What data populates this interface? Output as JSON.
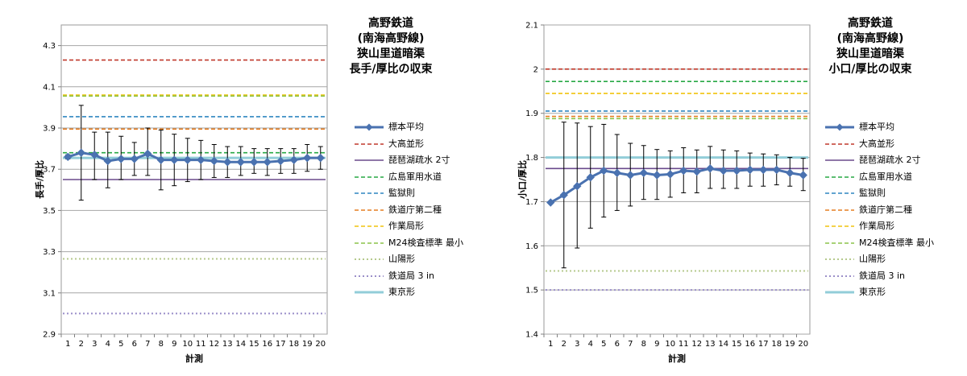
{
  "chart_data": [
    {
      "type": "line",
      "title": [
        "高野鉄道",
        "(南海高野線)",
        "狭山里道暗渠",
        "長手/厚比の収束"
      ],
      "xlabel": "計測",
      "ylabel": "長手/厚比",
      "x": [
        1,
        2,
        3,
        4,
        5,
        6,
        7,
        8,
        9,
        10,
        11,
        12,
        13,
        14,
        15,
        16,
        17,
        18,
        19,
        20
      ],
      "ylim": [
        2.9,
        4.4
      ],
      "yticks": [
        2.9,
        3.1,
        3.3,
        3.5,
        3.7,
        3.9,
        4.1,
        4.3
      ],
      "ytick_labels": [
        "2.9",
        "3.1",
        "3.3",
        "3.5",
        "3.7",
        "3.9",
        "4.1",
        "4.3"
      ],
      "grid": true,
      "legend_position": "right",
      "series": [
        {
          "name": "標本平均",
          "kind": "mean",
          "color": "#4a72b0",
          "values": [
            3.76,
            3.78,
            3.77,
            3.74,
            3.75,
            3.75,
            3.775,
            3.745,
            3.745,
            3.745,
            3.745,
            3.74,
            3.735,
            3.735,
            3.735,
            3.735,
            3.74,
            3.745,
            3.755,
            3.755
          ],
          "error_low": [
            3.75,
            3.55,
            3.65,
            3.61,
            3.65,
            3.67,
            3.67,
            3.6,
            3.62,
            3.64,
            3.65,
            3.66,
            3.66,
            3.67,
            3.68,
            3.67,
            3.68,
            3.68,
            3.69,
            3.7
          ],
          "error_high": [
            3.77,
            4.01,
            3.88,
            3.88,
            3.86,
            3.83,
            3.9,
            3.89,
            3.87,
            3.85,
            3.84,
            3.82,
            3.81,
            3.81,
            3.8,
            3.8,
            3.8,
            3.8,
            3.82,
            3.81
          ]
        },
        {
          "name": "大高並形",
          "value": 4.23,
          "color": "#c0392b",
          "style": "dashed"
        },
        {
          "name": "琵琶湖疏水 2寸",
          "value": 3.65,
          "color": "#6a4a8c",
          "style": "solid"
        },
        {
          "name": "広島軍用水道",
          "value": 3.78,
          "color": "#27a844",
          "style": "dashed"
        },
        {
          "name": "監獄則",
          "value": 3.955,
          "color": "#2e86c1",
          "style": "dashed"
        },
        {
          "name": "鉄道庁第二種",
          "value": 3.895,
          "color": "#e67e22",
          "style": "dashed"
        },
        {
          "name": "作業局形",
          "value": 4.06,
          "color": "#f1c40f",
          "style": "dashed"
        },
        {
          "name": "M24検査標準 最小",
          "value": 4.055,
          "color": "#8bc34a",
          "style": "dashed"
        },
        {
          "name": "山陽形",
          "value": 3.265,
          "color": "#b5c98c",
          "style": "dotted"
        },
        {
          "name": "鉄道局 3 in",
          "value": 3.0,
          "color": "#9b8fc9",
          "style": "dotted"
        },
        {
          "name": "東京形",
          "value": 3.755,
          "color": "#92cdd8",
          "style": "thick"
        }
      ]
    },
    {
      "type": "line",
      "title": [
        "高野鉄道",
        "(南海高野線)",
        "狭山里道暗渠",
        "小口/厚比の収束"
      ],
      "xlabel": "計測",
      "ylabel": "小口/厚比",
      "x": [
        1,
        2,
        3,
        4,
        5,
        6,
        7,
        8,
        9,
        10,
        11,
        12,
        13,
        14,
        15,
        16,
        17,
        18,
        19,
        20
      ],
      "ylim": [
        1.4,
        2.1
      ],
      "yticks": [
        1.4,
        1.5,
        1.6,
        1.7,
        1.8,
        1.9,
        2.0,
        2.1
      ],
      "ytick_labels": [
        "1.4",
        "1.5",
        "1.6",
        "1.7",
        "1.8",
        "1.9",
        "2",
        "2.1"
      ],
      "grid": true,
      "legend_position": "right",
      "series": [
        {
          "name": "標本平均",
          "kind": "mean",
          "color": "#4a72b0",
          "values": [
            1.698,
            1.715,
            1.735,
            1.755,
            1.77,
            1.765,
            1.76,
            1.765,
            1.76,
            1.762,
            1.77,
            1.768,
            1.775,
            1.77,
            1.77,
            1.772,
            1.772,
            1.772,
            1.765,
            1.76
          ],
          "error_low": [
            1.698,
            1.55,
            1.595,
            1.64,
            1.665,
            1.68,
            1.69,
            1.705,
            1.705,
            1.71,
            1.72,
            1.72,
            1.73,
            1.73,
            1.73,
            1.735,
            1.735,
            1.738,
            1.735,
            1.725
          ],
          "error_high": [
            1.698,
            1.88,
            1.878,
            1.87,
            1.875,
            1.852,
            1.832,
            1.827,
            1.818,
            1.815,
            1.822,
            1.817,
            1.825,
            1.817,
            1.815,
            1.81,
            1.808,
            1.806,
            1.8,
            1.798
          ]
        },
        {
          "name": "大高並形",
          "value": 2.0,
          "color": "#c0392b",
          "style": "dashed"
        },
        {
          "name": "琵琶湖疏水 2寸",
          "value": 1.775,
          "color": "#6a4a8c",
          "style": "solid"
        },
        {
          "name": "広島軍用水道",
          "value": 1.972,
          "color": "#27a844",
          "style": "dashed"
        },
        {
          "name": "監獄則",
          "value": 1.905,
          "color": "#2e86c1",
          "style": "dashed"
        },
        {
          "name": "鉄道庁第二種",
          "value": 1.893,
          "color": "#e67e22",
          "style": "dashed"
        },
        {
          "name": "作業局形",
          "value": 1.945,
          "color": "#f1c40f",
          "style": "dashed"
        },
        {
          "name": "M24検査標準 最小",
          "value": 1.888,
          "color": "#8bc34a",
          "style": "dashed"
        },
        {
          "name": "山陽形",
          "value": 1.543,
          "color": "#b5c98c",
          "style": "dotted"
        },
        {
          "name": "鉄道局 3 in",
          "value": 1.5,
          "color": "#9b8fc9",
          "style": "dotted"
        },
        {
          "name": "東京形",
          "value": 1.8,
          "color": "#92cdd8",
          "style": "thick"
        }
      ]
    }
  ]
}
